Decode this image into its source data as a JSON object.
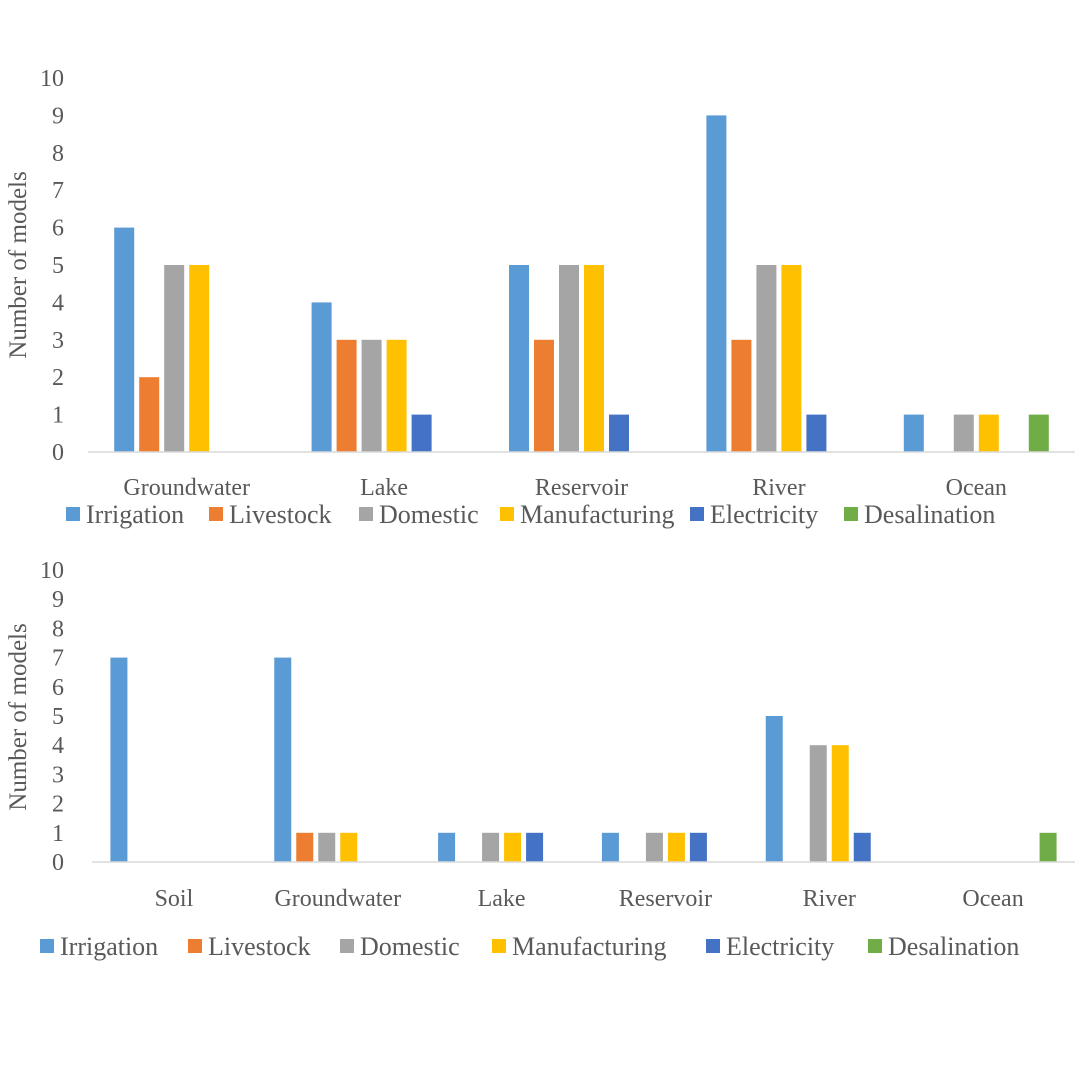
{
  "chart_data": [
    {
      "type": "bar",
      "xlabel": "",
      "ylabel": "Number of models",
      "ylim": [
        0,
        10
      ],
      "yticks": [
        "0",
        "1",
        "2",
        "3",
        "4",
        "5",
        "6",
        "7",
        "8",
        "9",
        "10"
      ],
      "grid": false,
      "legend_position": "bottom",
      "categories": [
        "Groundwater",
        "Lake",
        "Reservoir",
        "River",
        "Ocean"
      ],
      "series": [
        {
          "name": "Irrigation",
          "color": "#5B9BD5",
          "values": [
            6,
            4,
            5,
            9,
            1
          ]
        },
        {
          "name": "Livestock",
          "color": "#ED7D31",
          "values": [
            2,
            3,
            3,
            3,
            0
          ]
        },
        {
          "name": "Domestic",
          "color": "#A5A5A5",
          "values": [
            5,
            3,
            5,
            5,
            1
          ]
        },
        {
          "name": "Manufacturing",
          "color": "#FFC000",
          "values": [
            5,
            3,
            5,
            5,
            1
          ]
        },
        {
          "name": "Electricity",
          "color": "#4472C4",
          "values": [
            0,
            1,
            1,
            1,
            0
          ]
        },
        {
          "name": "Desalination",
          "color": "#70AD47",
          "values": [
            0,
            0,
            0,
            0,
            1
          ]
        }
      ]
    },
    {
      "type": "bar",
      "xlabel": "",
      "ylabel": "Number of models",
      "ylim": [
        0,
        10
      ],
      "yticks": [
        "0",
        "1",
        "2",
        "3",
        "4",
        "5",
        "6",
        "7",
        "8",
        "9",
        "10"
      ],
      "grid": false,
      "legend_position": "bottom",
      "categories": [
        "Soil",
        "Groundwater",
        "Lake",
        "Reservoir",
        "River",
        "Ocean"
      ],
      "series": [
        {
          "name": "Irrigation",
          "color": "#5B9BD5",
          "values": [
            7,
            7,
            1,
            1,
            5,
            0
          ]
        },
        {
          "name": "Livestock",
          "color": "#ED7D31",
          "values": [
            0,
            1,
            0,
            0,
            0,
            0
          ]
        },
        {
          "name": "Domestic",
          "color": "#A5A5A5",
          "values": [
            0,
            1,
            1,
            1,
            4,
            0
          ]
        },
        {
          "name": "Manufacturing",
          "color": "#FFC000",
          "values": [
            0,
            1,
            1,
            1,
            4,
            0
          ]
        },
        {
          "name": "Electricity",
          "color": "#4472C4",
          "values": [
            0,
            0,
            1,
            1,
            1,
            0
          ]
        },
        {
          "name": "Desalination",
          "color": "#70AD47",
          "values": [
            0,
            0,
            0,
            0,
            0,
            1
          ]
        }
      ]
    }
  ]
}
